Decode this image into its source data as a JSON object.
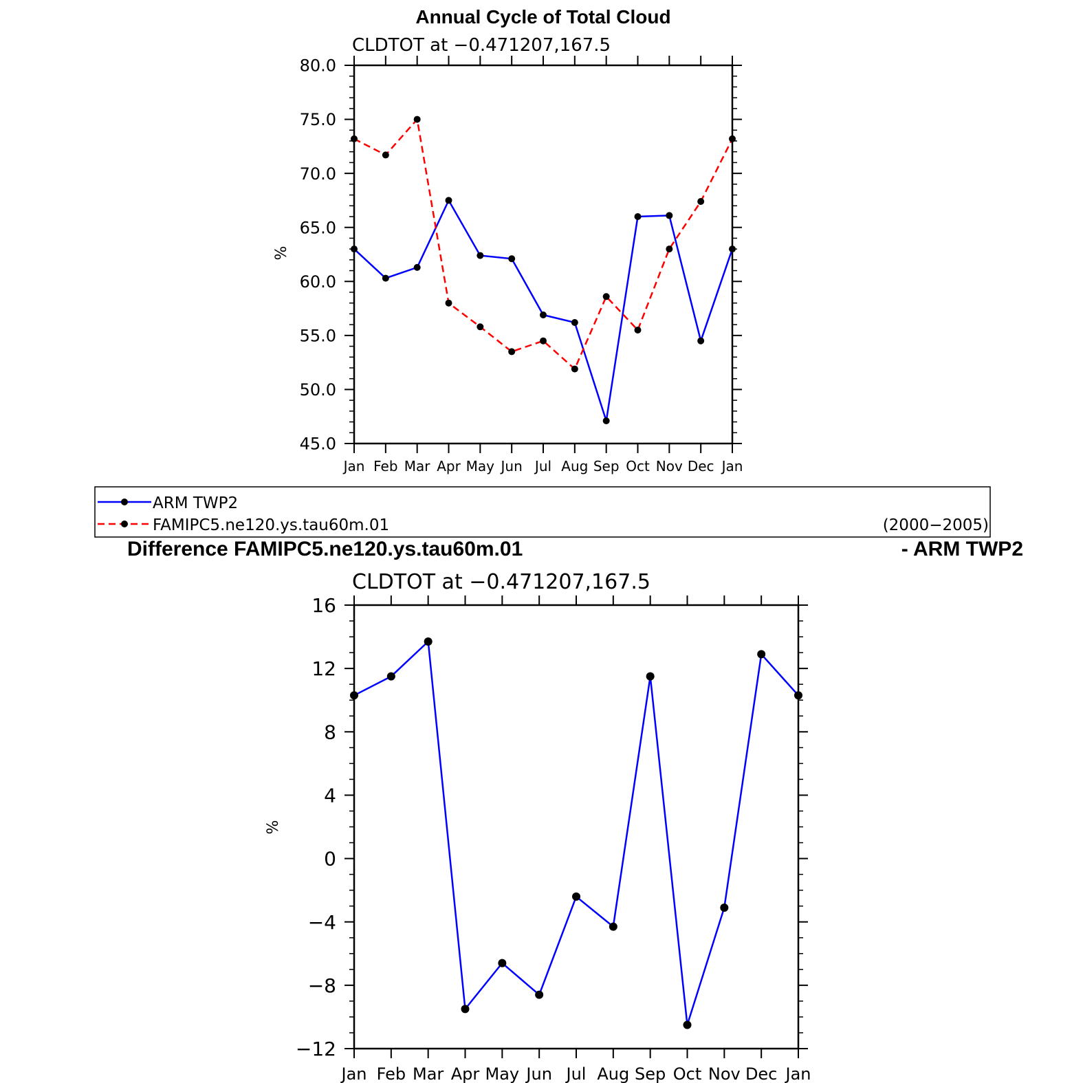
{
  "chart_data": [
    {
      "type": "line",
      "title": "Annual Cycle of Total Cloud",
      "subtitle": "CLDTOT at −0.471207,167.5",
      "ylabel": "%",
      "xlabel": "",
      "categories": [
        "Jan",
        "Feb",
        "Mar",
        "Apr",
        "May",
        "Jun",
        "Jul",
        "Aug",
        "Sep",
        "Oct",
        "Nov",
        "Dec",
        "Jan"
      ],
      "ylim": [
        45,
        80
      ],
      "yticks": [
        "45.0",
        "50.0",
        "55.0",
        "60.0",
        "65.0",
        "70.0",
        "75.0",
        "80.0"
      ],
      "series": [
        {
          "name": "ARM TWP2",
          "color": "#0000ff",
          "dash": "solid",
          "values": [
            63.0,
            60.3,
            61.3,
            67.5,
            62.4,
            62.1,
            56.9,
            56.2,
            47.1,
            66.0,
            66.1,
            54.5,
            63.0
          ]
        },
        {
          "name": "FAMIPC5.ne120.ys.tau60m.01",
          "color": "#ff0000",
          "dash": "dashed",
          "values": [
            73.2,
            71.7,
            75.0,
            58.0,
            55.8,
            53.5,
            54.5,
            51.9,
            58.6,
            55.5,
            63.0,
            67.4,
            73.2
          ]
        }
      ],
      "legend": {
        "placement": "below",
        "entries": [
          "ARM TWP2",
          "FAMIPC5.ne120.ys.tau60m.01"
        ],
        "period": "(2000−2005)"
      }
    },
    {
      "type": "line",
      "title_left": "Difference FAMIPC5.ne120.ys.tau60m.01",
      "title_right": "- ARM TWP2",
      "subtitle": "CLDTOT at −0.471207,167.5",
      "ylabel": "%",
      "xlabel": "",
      "categories": [
        "Jan",
        "Feb",
        "Mar",
        "Apr",
        "May",
        "Jun",
        "Jul",
        "Aug",
        "Sep",
        "Oct",
        "Nov",
        "Dec",
        "Jan"
      ],
      "ylim": [
        -12,
        16
      ],
      "yticks": [
        "−12",
        "−8",
        "−4",
        "0",
        "4",
        "8",
        "12",
        "16"
      ],
      "series": [
        {
          "name": "Difference",
          "color": "#0000ff",
          "dash": "solid",
          "values": [
            10.3,
            11.5,
            13.7,
            -9.5,
            -6.6,
            -8.6,
            -2.4,
            -4.3,
            11.5,
            -10.5,
            -3.1,
            12.9,
            10.3
          ]
        }
      ]
    }
  ]
}
